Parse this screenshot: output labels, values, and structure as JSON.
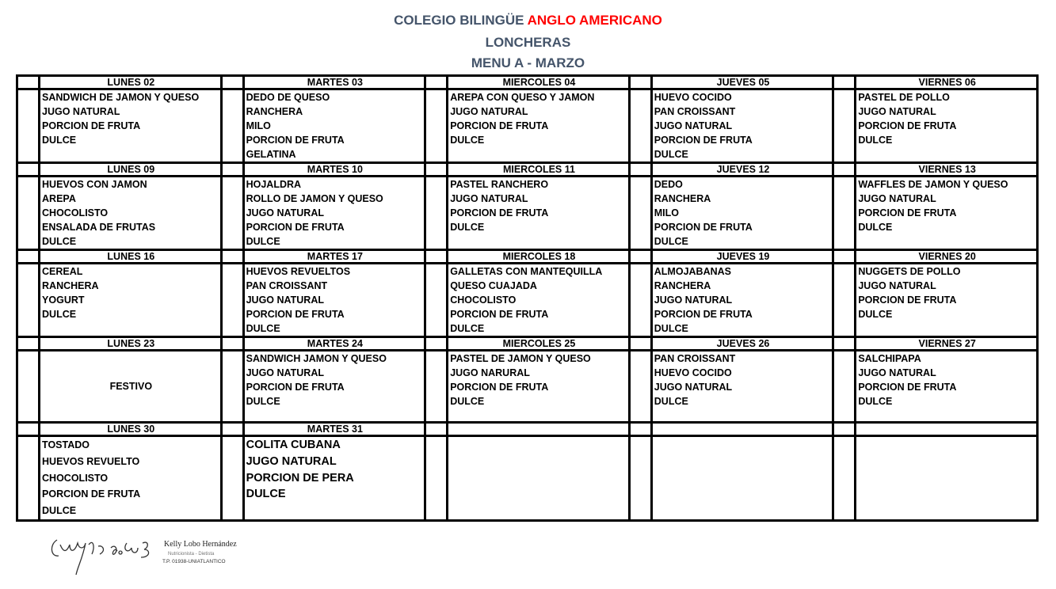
{
  "header": {
    "school_prefix": "COLEGIO BILINGÜE",
    "school_highlight": "ANGLO AMERICANO",
    "subtitle": "LONCHERAS",
    "menu": "MENU A - MARZO"
  },
  "colors": {
    "title": "#44546a",
    "highlight": "#ff0000"
  },
  "weeks": [
    {
      "days": [
        {
          "label": "LUNES 02",
          "items": [
            "SANDWICH DE JAMON Y QUESO",
            "JUGO NATURAL",
            "PORCION DE FRUTA",
            "DULCE"
          ]
        },
        {
          "label": "MARTES 03",
          "items": [
            "DEDO DE QUESO",
            "RANCHERA",
            "MILO",
            "PORCION DE FRUTA",
            "GELATINA"
          ]
        },
        {
          "label": "MIERCOLES 04",
          "items": [
            "AREPA CON QUESO Y JAMON",
            "JUGO NATURAL",
            "PORCION DE FRUTA",
            "DULCE"
          ]
        },
        {
          "label": "JUEVES 05",
          "items": [
            "HUEVO COCIDO",
            "PAN CROISSANT",
            "JUGO NATURAL",
            "PORCION DE FRUTA",
            "DULCE"
          ]
        },
        {
          "label": "VIERNES 06",
          "items": [
            "PASTEL DE POLLO",
            "JUGO NATURAL",
            "PORCION DE FRUTA",
            "DULCE"
          ]
        }
      ]
    },
    {
      "days": [
        {
          "label": "LUNES 09",
          "items": [
            "HUEVOS CON JAMON",
            "AREPA",
            "CHOCOLISTO",
            "ENSALADA DE FRUTAS",
            "DULCE"
          ]
        },
        {
          "label": "MARTES 10",
          "items": [
            "HOJALDRA",
            "ROLLO DE JAMON Y QUESO",
            "JUGO NATURAL",
            "PORCION DE FRUTA",
            "DULCE"
          ]
        },
        {
          "label": "MIERCOLES 11",
          "items": [
            "PASTEL RANCHERO",
            "JUGO NATURAL",
            "PORCION DE FRUTA",
            "DULCE"
          ]
        },
        {
          "label": "JUEVES 12",
          "items": [
            "DEDO",
            "RANCHERA",
            "MILO",
            "PORCION DE FRUTA",
            "DULCE"
          ]
        },
        {
          "label": "VIERNES 13",
          "items": [
            "WAFFLES DE JAMON Y QUESO",
            "JUGO NATURAL",
            "PORCION DE FRUTA",
            "DULCE"
          ]
        }
      ]
    },
    {
      "days": [
        {
          "label": "LUNES 16",
          "items": [
            "CEREAL",
            "RANCHERA",
            "YOGURT",
            "DULCE"
          ]
        },
        {
          "label": "MARTES 17",
          "items": [
            "HUEVOS REVUELTOS",
            "PAN CROISSANT",
            "JUGO NATURAL",
            "PORCION DE FRUTA",
            "DULCE"
          ]
        },
        {
          "label": "MIERCOLES 18",
          "items": [
            "GALLETAS CON MANTEQUILLA",
            "QUESO CUAJADA",
            "CHOCOLISTO",
            "PORCION DE FRUTA",
            "DULCE"
          ]
        },
        {
          "label": "JUEVES 19",
          "items": [
            "ALMOJABANAS",
            "RANCHERA",
            "JUGO NATURAL",
            "PORCION DE FRUTA",
            "DULCE"
          ]
        },
        {
          "label": "VIERNES 20",
          "items": [
            "NUGGETS DE POLLO",
            "JUGO NATURAL",
            "PORCION DE FRUTA",
            "DULCE"
          ]
        }
      ]
    },
    {
      "days": [
        {
          "label": "LUNES 23",
          "holiday": "FESTIVO",
          "items": []
        },
        {
          "label": "MARTES 24",
          "items": [
            "SANDWICH JAMON Y QUESO",
            "JUGO NATURAL",
            "PORCION DE FRUTA",
            "DULCE"
          ]
        },
        {
          "label": "MIERCOLES 25",
          "items": [
            "PASTEL DE JAMON Y QUESO",
            "JUGO NARURAL",
            "PORCION DE FRUTA",
            "DULCE"
          ]
        },
        {
          "label": "JUEVES 26",
          "items": [
            "PAN CROISSANT",
            "HUEVO COCIDO",
            "JUGO NATURAL",
            "DULCE"
          ]
        },
        {
          "label": "VIERNES 27",
          "items": [
            "SALCHIPAPA",
            "JUGO NATURAL",
            "PORCION DE FRUTA",
            "DULCE"
          ]
        }
      ]
    },
    {
      "days": [
        {
          "label": "LUNES 30",
          "items": [
            "TOSTADO",
            "HUEVOS  REVUELTO",
            "CHOCOLISTO",
            "PORCION DE FRUTA",
            "DULCE"
          ]
        },
        {
          "label": "MARTES 31",
          "items": [
            "COLITA CUBANA",
            "JUGO NATURAL",
            "PORCION DE PERA",
            "DULCE"
          ]
        },
        {
          "label": "",
          "items": []
        },
        {
          "label": "",
          "items": []
        },
        {
          "label": "",
          "items": []
        }
      ]
    }
  ],
  "signature": {
    "name": "Kelly Lobo Hernández",
    "role": "Nutricionista - Dietista",
    "license": "T.P. 01938-UNIATLANTICO"
  }
}
